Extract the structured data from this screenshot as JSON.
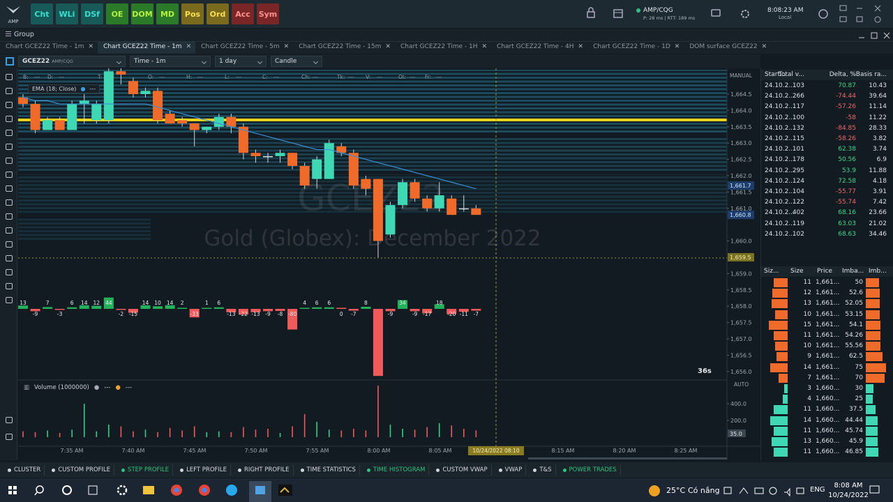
{
  "app": {
    "logo": "AMP",
    "toolbar": [
      "Cht",
      "WLi",
      "DSf",
      "OE",
      "DOM",
      "MD",
      "Pos",
      "Ord",
      "Acc",
      "Sym"
    ],
    "connection": "AMP/CQG",
    "latency": "P: 28 ms | RTT: 189 ms",
    "clock": "8:08:23 AM",
    "clock_zone": "Local"
  },
  "group": "Group",
  "tabs": [
    "Chart GCEZ22 Time - 1m",
    "Chart GCEZ22 Time - 1m",
    "Chart GCEZ22 Time - 5m",
    "Chart GCEZ22 Time - 15m",
    "Chart GCEZ22 Time - 1H",
    "Chart GCEZ22 Time - 4H",
    "Chart GCEZ22 Time - 1D",
    "DOM surface GCEZ22"
  ],
  "chart_toolbar": {
    "symbol": "GCEZ22",
    "feed": "AMP/CQG",
    "interval": "Time - 1m",
    "range": "1 day",
    "style": "Candle"
  },
  "chart": {
    "fields": [
      {
        "label": "B:",
        "value": "---"
      },
      {
        "label": "D:",
        "value": "---"
      },
      {
        "label": "T:",
        "value": "---"
      },
      {
        "label": "O:",
        "value": "---"
      },
      {
        "label": "H:",
        "value": "---"
      },
      {
        "label": "L:",
        "value": "---"
      },
      {
        "label": "C:",
        "value": "---"
      },
      {
        "label": "Ch:",
        "value": "---"
      },
      {
        "label": "Tk:",
        "value": "---"
      },
      {
        "label": "V:",
        "value": "---"
      },
      {
        "label": "OI:",
        "value": "---"
      },
      {
        "label": "Fr:",
        "value": "---"
      }
    ],
    "ema_label": "EMA (18; Close)",
    "ema_value": "---",
    "watermark_symbol": "GCEZ22",
    "watermark_name": "Gold (Globex): December 2022",
    "scale_mode": "MANUAL",
    "yticks": [
      {
        "value": 1664.5,
        "label": "1,664.5"
      },
      {
        "value": 1664.0,
        "label": "1,664.0"
      },
      {
        "value": 1663.5,
        "label": "1,663.5"
      },
      {
        "value": 1663.0,
        "label": "1,663.0"
      },
      {
        "value": 1662.5,
        "label": "1,662.5"
      },
      {
        "value": 1662.0,
        "label": "1,662.0"
      },
      {
        "value": 1661.5,
        "label": "1,661.5"
      },
      {
        "value": 1661.0,
        "label": "1,661.0"
      },
      {
        "value": 1660.0,
        "label": "1,660.0"
      },
      {
        "value": 1659.0,
        "label": "1,659.0"
      },
      {
        "value": 1658.5,
        "label": "1,658.5"
      },
      {
        "value": 1658.0,
        "label": "1,658.0"
      },
      {
        "value": 1657.5,
        "label": "1,657.5"
      },
      {
        "value": 1657.0,
        "label": "1,657.0"
      },
      {
        "value": 1656.5,
        "label": "1,656.5"
      },
      {
        "value": 1656.0,
        "label": "1,656.0"
      }
    ],
    "price_markers": [
      {
        "value": 1661.7,
        "label": "1,661.7"
      },
      {
        "value": 1660.8,
        "label": "1,660.8"
      },
      {
        "value": 1659.5,
        "label": "1,659.5"
      }
    ],
    "open": [
      1664.4,
      1664.2,
      1663.4,
      1663.7,
      1663.4,
      1664.2,
      1663.7,
      1663.7,
      1665.2,
      1664.9,
      1664.5,
      1664.6,
      1663.9,
      1663.7,
      1663.6,
      1663.4,
      1663.5,
      1663.8,
      1663.5,
      1662.7,
      1662.6,
      1662.6,
      1662.7,
      1662.3,
      1661.9,
      1661.9,
      1662.9,
      1662.7,
      1661.9,
      1661.9,
      1660.2,
      1661.1,
      1661.8,
      1661.3,
      1661.0,
      1661.3,
      1661.0,
      1661.0
    ],
    "high": [
      1664.5,
      1664.3,
      1663.8,
      1663.8,
      1664.3,
      1664.5,
      1664.3,
      1665.3,
      1665.3,
      1665.0,
      1664.7,
      1664.7,
      1664.0,
      1663.8,
      1663.6,
      1663.5,
      1663.9,
      1663.9,
      1663.6,
      1662.8,
      1662.7,
      1662.8,
      1662.7,
      1662.4,
      1662.6,
      1663.1,
      1663.0,
      1662.8,
      1662.0,
      1661.9,
      1661.2,
      1661.9,
      1661.9,
      1661.4,
      1661.8,
      1661.4,
      1661.4,
      1661.1
    ],
    "low": [
      1664.1,
      1663.3,
      1663.4,
      1663.4,
      1663.4,
      1663.6,
      1663.6,
      1663.6,
      1664.8,
      1664.4,
      1664.4,
      1663.6,
      1663.6,
      1663.5,
      1662.9,
      1663.3,
      1663.4,
      1663.3,
      1662.5,
      1662.4,
      1662.4,
      1662.4,
      1662.2,
      1661.6,
      1661.6,
      1661.9,
      1662.6,
      1661.6,
      1661.4,
      1659.5,
      1660.1,
      1661.0,
      1661.2,
      1660.9,
      1660.9,
      1660.8,
      1660.9,
      1660.8
    ],
    "close": [
      1664.2,
      1663.4,
      1663.7,
      1663.4,
      1664.2,
      1664.3,
      1664.2,
      1665.2,
      1665.1,
      1664.5,
      1664.6,
      1663.7,
      1663.6,
      1663.6,
      1663.4,
      1663.5,
      1663.8,
      1663.5,
      1662.7,
      1662.6,
      1662.6,
      1662.7,
      1662.3,
      1661.7,
      1662.5,
      1663.0,
      1662.7,
      1661.7,
      1661.6,
      1660.0,
      1661.1,
      1661.8,
      1661.3,
      1661.0,
      1661.4,
      1660.8,
      1661.0,
      1660.8
    ],
    "ema": [
      1664.4,
      1664.3,
      1664.3,
      1664.2,
      1664.2,
      1664.2,
      1664.2,
      1664.2,
      1664.2,
      1664.2,
      1664.2,
      1664.1,
      1664.0,
      1663.9,
      1663.8,
      1663.7,
      1663.6,
      1663.5,
      1663.4,
      1663.3,
      1663.2,
      1663.1,
      1663.0,
      1662.9,
      1662.8,
      1662.8,
      1662.7,
      1662.6,
      1662.5,
      1662.4,
      1662.3,
      1662.2,
      1662.1,
      1662.0,
      1661.9,
      1661.8,
      1661.7,
      1661.6
    ],
    "delta": {
      "values": [
        13,
        -9,
        7,
        -3,
        6,
        14,
        12,
        44,
        -2,
        -15,
        14,
        10,
        14,
        2,
        -33,
        1,
        6,
        -13,
        -22,
        -13,
        -9,
        -8,
        -80,
        4,
        6,
        6,
        0,
        -7,
        8,
        -260,
        -9,
        34,
        -9,
        -17,
        18,
        -20,
        -11,
        -7
      ],
      "value_labels": [
        "13",
        "-9",
        "7",
        "-3",
        "6",
        "14",
        "12",
        "44",
        "-2",
        "-15",
        "14",
        "10",
        "14",
        "2",
        "-33",
        "1",
        "6",
        "-13",
        "-22",
        "-13",
        "-9",
        "-8",
        "-80",
        "4",
        "6",
        "6",
        "0",
        "-7",
        "8",
        null,
        "-9",
        "34",
        "-9",
        "-17",
        "18",
        "-20",
        "-11",
        "-7"
      ]
    },
    "timer": "36s",
    "volume": {
      "title": "Volume (1000000)",
      "legend": [
        "---",
        "---"
      ],
      "scale_mode": "AUTO",
      "yticks": [
        {
          "value": 400,
          "label": "400.0"
        },
        {
          "value": 200,
          "label": "200.0"
        }
      ],
      "marker": "35.0",
      "values": [
        70,
        60,
        80,
        50,
        90,
        400,
        70,
        150,
        130,
        70,
        90,
        60,
        110,
        80,
        130,
        60,
        70,
        60,
        120,
        90,
        100,
        50,
        130,
        275,
        183,
        90,
        80,
        100,
        80,
        617,
        150,
        100,
        90,
        120,
        167,
        140,
        100,
        80
      ]
    },
    "xticks": [
      "7:35 AM",
      "7:40 AM",
      "7:45 AM",
      "7:50 AM",
      "7:55 AM",
      "8:00 AM",
      "8:05 AM",
      "8:15 AM",
      "8:20 AM",
      "8:25 AM"
    ],
    "cursor_time": "10/24/2022 08:10"
  },
  "ts": {
    "columns": [
      "Start...",
      "Total v...",
      "Delta, %",
      "Basis ra..."
    ],
    "rows": [
      [
        "24.10.2...",
        "103",
        "70.87",
        "10.43"
      ],
      [
        "24.10.2...",
        "266",
        "-74.44",
        "39.64"
      ],
      [
        "24.10.2...",
        "117",
        "-57.26",
        "11.14"
      ],
      [
        "24.10.2...",
        "100",
        "-58",
        "11.22"
      ],
      [
        "24.10.2...",
        "132",
        "-84.85",
        "28.33"
      ],
      [
        "24.10.2...",
        "115",
        "-58.26",
        "3.82"
      ],
      [
        "24.10.2...",
        "101",
        "62.38",
        "3.74"
      ],
      [
        "24.10.2...",
        "178",
        "50.56",
        "6.9"
      ],
      [
        "24.10.2...",
        "295",
        "53.9",
        "11.88"
      ],
      [
        "24.10.2...",
        "124",
        "72.58",
        "4.18"
      ],
      [
        "24.10.2...",
        "104",
        "-55.77",
        "3.91"
      ],
      [
        "24.10.2...",
        "122",
        "-55.74",
        "7.42"
      ],
      [
        "24.10.2...",
        "402",
        "68.16",
        "23.66"
      ],
      [
        "24.10.2...",
        "119",
        "63.03",
        "21.02"
      ],
      [
        "24.10.2...",
        "102",
        "68.63",
        "34.46"
      ]
    ]
  },
  "dom": {
    "columns": [
      "Siz...",
      "Size",
      "Price",
      "Imba...",
      "Imb..."
    ],
    "rows": [
      [
        11,
        "1,661...",
        50
      ],
      [
        12,
        "1,661...",
        52.6
      ],
      [
        13,
        "1,661...",
        52.05
      ],
      [
        10,
        "1,661...",
        53.15
      ],
      [
        15,
        "1,661...",
        54.1
      ],
      [
        11,
        "1,661...",
        54.26
      ],
      [
        10,
        "1,661...",
        55.56
      ],
      [
        9,
        "1,661...",
        62.5
      ],
      [
        14,
        "1,661...",
        75
      ],
      [
        7,
        "1,661...",
        70
      ],
      [
        3,
        "1,660...",
        30
      ],
      [
        4,
        "1,660...",
        25
      ],
      [
        11,
        "1,660...",
        37.5
      ],
      [
        14,
        "1,660...",
        44.44
      ],
      [
        11,
        "1,660...",
        45.74
      ],
      [
        13,
        "1,660...",
        45.9
      ],
      [
        11,
        "1,660...",
        46.85
      ]
    ]
  },
  "tools": [
    {
      "label": "CLUSTER",
      "active": false
    },
    {
      "label": "CUSTOM PROFILE",
      "active": false
    },
    {
      "label": "STEP PROFILE",
      "active": true
    },
    {
      "label": "LEFT PROFILE",
      "active": false
    },
    {
      "label": "RIGHT PROFILE",
      "active": false
    },
    {
      "label": "TIME STATISTICS",
      "active": false
    },
    {
      "label": "TIME HISTOGRAM",
      "active": true
    },
    {
      "label": "CUSTOM VWAP",
      "active": false
    },
    {
      "label": "VWAP",
      "active": false
    },
    {
      "label": "T&S",
      "active": false
    },
    {
      "label": "POWER TRADES",
      "active": true
    }
  ],
  "taskbar": {
    "temperature": "25°C",
    "weather": "Có nắng",
    "lang": "ENG",
    "time": "8:08 AM",
    "date": "10/24/2022"
  }
}
